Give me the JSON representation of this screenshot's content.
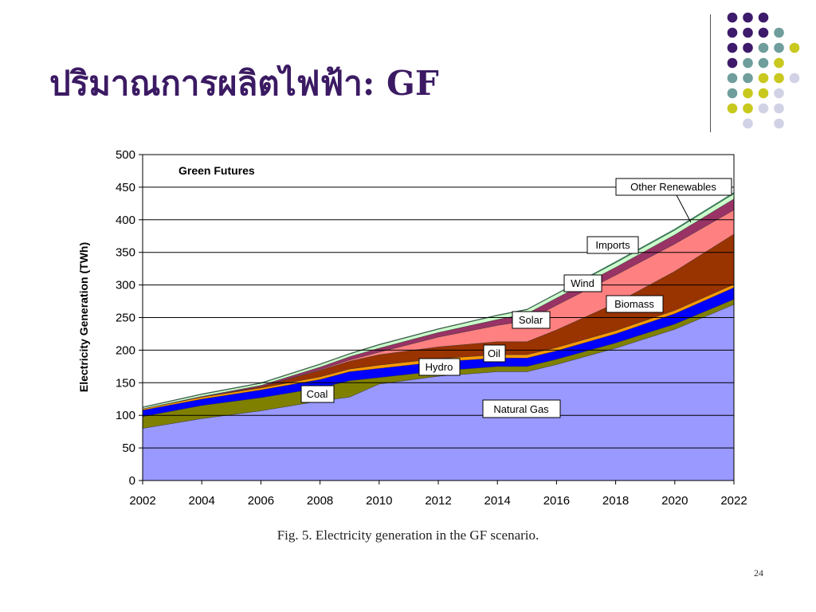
{
  "slide": {
    "title": "ปริมาณการผลิตไฟฟ้า: GF",
    "page_number": "24",
    "dot_colors": {
      "purple": "#3e1a6b",
      "teal": "#6f9e9c",
      "yellow": "#c8c81e",
      "lavender": "#d2d2e6"
    }
  },
  "chart_data": {
    "type": "area",
    "title": "Green Futures",
    "ylabel": "Electricity Generation (TWh)",
    "xlabel": "",
    "caption": "Fig. 5.  Electricity generation in the GF scenario.",
    "xlim": [
      2002,
      2022
    ],
    "ylim": [
      0,
      500
    ],
    "x_ticks": [
      "2002",
      "2004",
      "2006",
      "2008",
      "2010",
      "2012",
      "2014",
      "2016",
      "2018",
      "2020",
      "2022"
    ],
    "y_ticks": [
      "0",
      "50",
      "100",
      "150",
      "200",
      "250",
      "300",
      "350",
      "400",
      "450",
      "500"
    ],
    "grid": true,
    "x": [
      2002,
      2004,
      2006,
      2008,
      2009,
      2010,
      2012,
      2014,
      2015,
      2016,
      2018,
      2020,
      2022
    ],
    "series": [
      {
        "name": "Natural Gas",
        "color": "#9999ff",
        "values": [
          80,
          95,
          107,
          122,
          128,
          148,
          160,
          167,
          167,
          178,
          203,
          232,
          270
        ]
      },
      {
        "name": "Coal",
        "color": "#808000",
        "values": [
          18,
          20,
          20,
          20,
          25,
          10,
          8,
          8,
          8,
          8,
          8,
          8,
          8
        ]
      },
      {
        "name": "Hydro",
        "color": "#0000ff",
        "values": [
          10,
          10,
          12,
          13,
          14,
          14,
          14,
          13,
          13,
          13,
          14,
          16,
          18
        ]
      },
      {
        "name": "Oil",
        "color": "#ff9900",
        "values": [
          2,
          3,
          3,
          4,
          4,
          5,
          5,
          5,
          5,
          5,
          5,
          5,
          5
        ]
      },
      {
        "name": "Biomass",
        "color": "#993300",
        "values": [
          0,
          0,
          2,
          10,
          12,
          16,
          18,
          20,
          20,
          27,
          42,
          60,
          77
        ]
      },
      {
        "name": "Solar",
        "color": "#ff8080",
        "values": [
          0,
          0,
          0,
          1,
          2,
          4,
          15,
          25,
          32,
          38,
          43,
          42,
          37
        ]
      },
      {
        "name": "Wind",
        "color": "#993366",
        "values": [
          0,
          1,
          2,
          4,
          5,
          6,
          7,
          9,
          11,
          11,
          12,
          14,
          17
        ]
      },
      {
        "name": "Imports",
        "color": "#ccffcc",
        "values": [
          2,
          3,
          3,
          4,
          4,
          5,
          5,
          6,
          6,
          6,
          7,
          7,
          8
        ]
      },
      {
        "name": "Other Renewables",
        "color": "#339966",
        "values": [
          1,
          1,
          1,
          1,
          1,
          1,
          1,
          1,
          1,
          1,
          2,
          2,
          2
        ]
      }
    ],
    "labels": {
      "natural_gas": "Natural Gas",
      "coal": "Coal",
      "hydro": "Hydro",
      "oil": "Oil",
      "solar": "Solar",
      "biomass": "Biomass",
      "wind": "Wind",
      "imports": "Imports",
      "other": "Other Renewables"
    }
  }
}
